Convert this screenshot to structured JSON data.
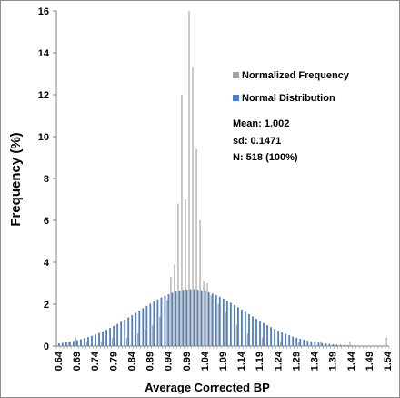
{
  "chart_data": {
    "type": "bar",
    "xlabel": "Average Corrected BP",
    "ylabel": "Frequency (%)",
    "ylim": [
      0,
      16
    ],
    "yticks": [
      0,
      2,
      4,
      6,
      8,
      10,
      12,
      14,
      16
    ],
    "xlim": [
      0.64,
      1.54
    ],
    "bin_width": 0.01,
    "xtick_labels": [
      "0.64",
      "0.69",
      "0.74",
      "0.79",
      "0.84",
      "0.89",
      "0.94",
      "0.99",
      "1.04",
      "1.09",
      "1.14",
      "1.19",
      "1.24",
      "1.29",
      "1.34",
      "1.39",
      "1.44",
      "1.49",
      "1.54"
    ],
    "grid": false,
    "legend_position": "right",
    "colors": {
      "normalized": "#a6a6a6",
      "normal": "#4f7fc0"
    },
    "series": [
      {
        "name": "Normalized Frequency",
        "x": [
          0.67,
          0.69,
          0.72,
          0.76,
          0.79,
          0.83,
          0.86,
          0.88,
          0.9,
          0.92,
          0.94,
          0.95,
          0.96,
          0.97,
          0.98,
          0.99,
          1.0,
          1.01,
          1.02,
          1.03,
          1.04,
          1.05,
          1.06,
          1.08,
          1.1,
          1.13,
          1.16,
          1.2,
          1.25,
          1.3,
          1.36,
          1.44,
          1.54
        ],
        "values": [
          0.2,
          0.4,
          0.2,
          0.2,
          0.4,
          0.4,
          0.6,
          0.8,
          1.0,
          1.4,
          2.2,
          3.3,
          3.9,
          6.8,
          12.0,
          7.0,
          16.0,
          13.3,
          9.4,
          6.0,
          3.1,
          3.0,
          2.4,
          2.0,
          1.6,
          1.0,
          0.6,
          0.4,
          0.2,
          0.2,
          0.2,
          0.2,
          0.4
        ]
      },
      {
        "name": "Normal Distribution",
        "mean": 1.002,
        "sd": 0.1471,
        "peak": 2.71
      }
    ],
    "annotations": {
      "mean": "Mean:  1.002",
      "sd": "sd: 0.1471",
      "n": "N: 518 (100%)"
    }
  }
}
